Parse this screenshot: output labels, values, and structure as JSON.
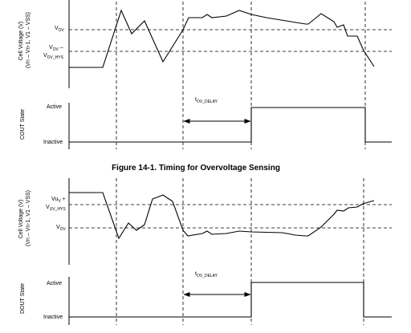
{
  "figures": [
    {
      "upper_axis_title": [
        "Cell Voltage (V)",
        "(Vn – Vn-1, V1 – VSS)"
      ],
      "lower_axis_title": "COUT State",
      "levels": [
        {
          "main": "V",
          "sub": "OV"
        },
        {
          "main": "V",
          "sub": "OV",
          "suffix": " –"
        },
        {
          "main": "V",
          "sub": "OV_HYS"
        }
      ],
      "state_high": "Active",
      "state_low": "Inactive",
      "delay": {
        "main": "t",
        "sub": "OV_DELAY"
      }
    },
    {
      "upper_axis_title": [
        "Cell Voltage (V)",
        "(Vn – Vn-1, V1 – VSS)"
      ],
      "lower_axis_title": "DOUT State",
      "levels": [
        {
          "main": "Vu",
          "sub": "V",
          "suffix": " +"
        },
        {
          "main": "V",
          "sub": "UV_HYS"
        },
        {
          "main": "V",
          "sub": "OV"
        }
      ],
      "state_high": "Active",
      "state_low": "Inactive",
      "delay": {
        "main": "t",
        "sub": "OV_DELAY"
      }
    }
  ],
  "caption": "Figure 14-1. Timing for Overvoltage Sensing"
}
